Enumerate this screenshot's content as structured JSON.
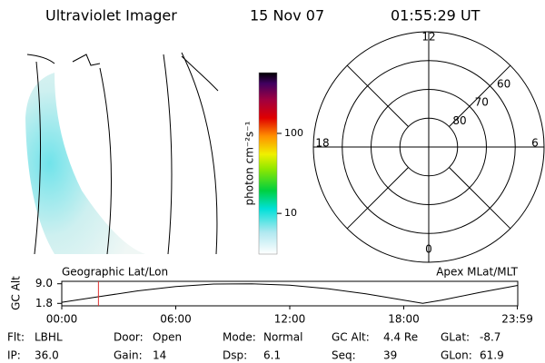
{
  "header": {
    "title": "Ultraviolet Imager",
    "date": "15 Nov 07",
    "time": "01:55:29 UT"
  },
  "colorbar": {
    "label": "photon cm⁻²s⁻¹",
    "scale": "log",
    "lim": [
      3.1,
      575
    ],
    "ticks": [
      10,
      100
    ]
  },
  "polar": {
    "rlim": [
      90,
      50
    ],
    "hour_labels": [
      12,
      18,
      6,
      0
    ],
    "lat_labels": [
      60,
      70,
      80
    ]
  },
  "timeline": {
    "left_label": "Geographic Lat/Lon",
    "right_label": "Apex MLat/MLT",
    "ylabel": "GC Alt",
    "ylim": [
      0.9,
      9.9
    ],
    "yticks": [
      {
        "value": 9.0,
        "label": "9.0"
      },
      1.8
    ],
    "xlim": [
      0,
      24
    ],
    "xticks": [
      {
        "value": 0,
        "label": "00:00"
      },
      {
        "value": 6,
        "label": "06:00"
      },
      {
        "value": 12,
        "label": "12:00"
      },
      {
        "value": 18,
        "label": "18:00"
      },
      {
        "value": 23.98,
        "label": "23:59"
      }
    ],
    "x": [
      0,
      2,
      4,
      6,
      8,
      10,
      12,
      14,
      16,
      18,
      19,
      20,
      22,
      24
    ],
    "values": [
      2.2,
      4.3,
      6.4,
      8.0,
      8.9,
      9.0,
      8.5,
      7.2,
      5.3,
      3.0,
      1.8,
      3.0,
      5.8,
      8.4
    ],
    "marker": 1.93,
    "marker_color": "#e03030"
  },
  "info": [
    [
      [
        "Flt:",
        "LBHL"
      ],
      [
        "Door:",
        "Open"
      ],
      [
        "Mode:",
        "Normal"
      ],
      [
        "GC Alt:",
        "4.4 Re"
      ],
      [
        "GLat:",
        "-8.7"
      ]
    ],
    [
      [
        "IP:",
        "36.0"
      ],
      [
        "Gain:",
        "14"
      ],
      [
        "Dsp:",
        "6.1"
      ],
      [
        "Seq:",
        "39"
      ],
      [
        "GLon:",
        "61.9"
      ]
    ]
  ]
}
